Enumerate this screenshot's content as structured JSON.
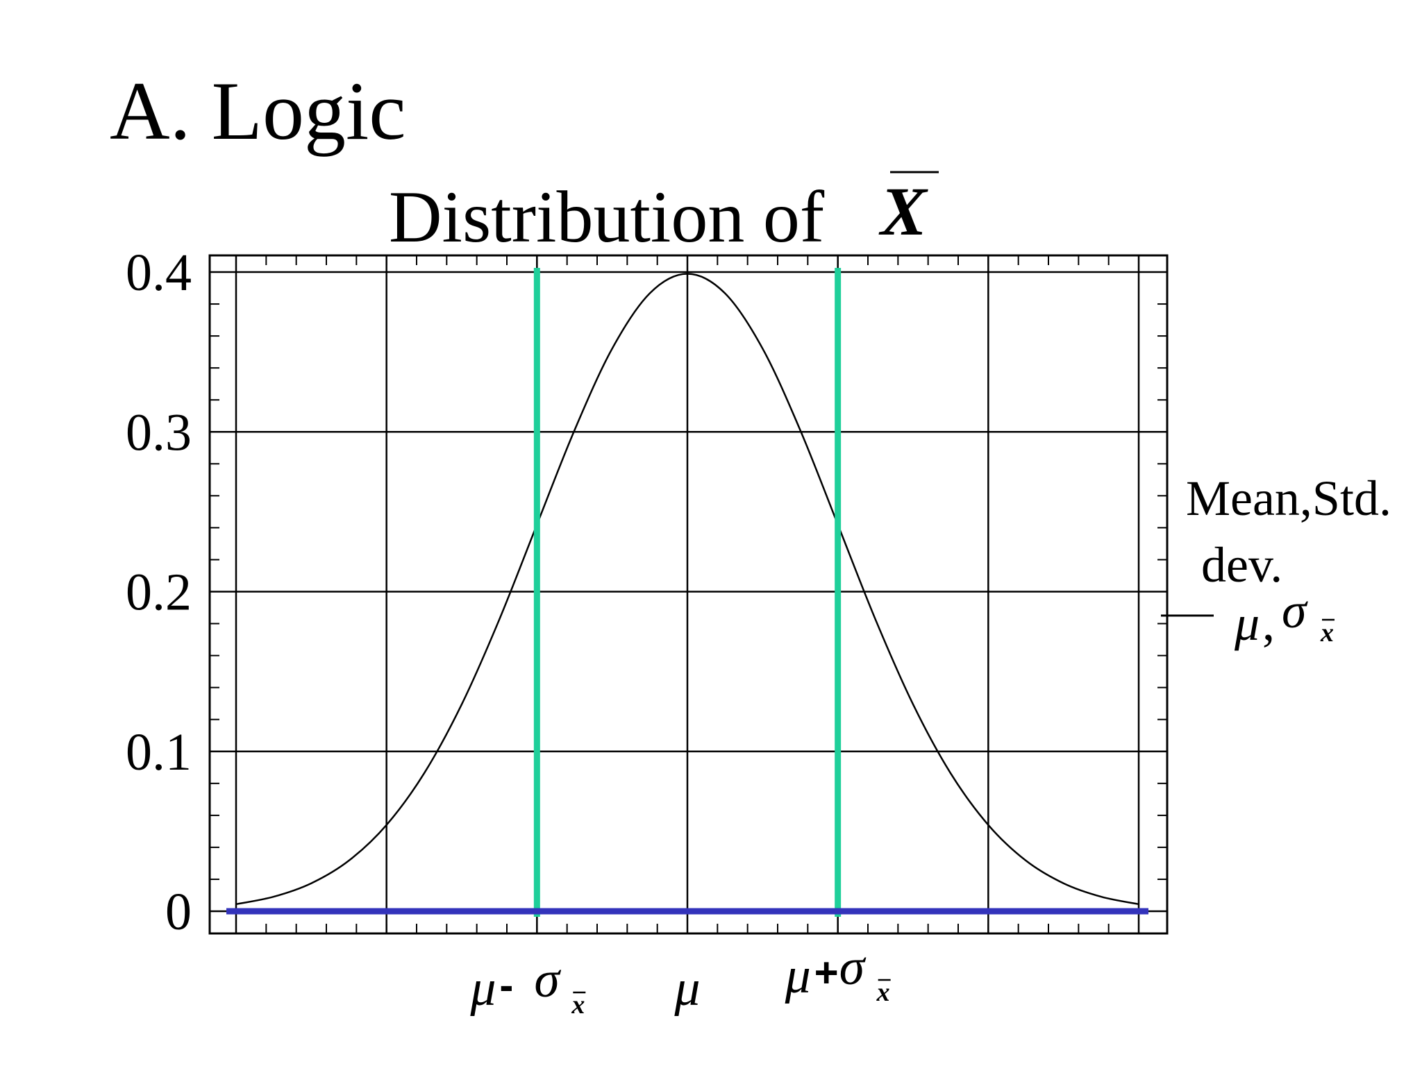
{
  "page": {
    "heading": "A. Logic"
  },
  "chart_data": {
    "type": "line",
    "title_text": "Distribution of",
    "title_symbol": "X",
    "x_domain": [
      -3,
      3
    ],
    "ylim": [
      0,
      0.4
    ],
    "grid": true,
    "y_ticks": [
      0,
      0.1,
      0.2,
      0.3,
      0.4
    ],
    "y_tick_labels": [
      "0",
      "0.1",
      "0.2",
      "0.3",
      "0.4"
    ],
    "x_grid": [
      -3,
      -2,
      -1,
      0,
      1,
      2,
      3
    ],
    "x_tick_labels": [
      {
        "x": -1,
        "mu": "μ",
        "op": "-",
        "sigma": "σ",
        "sub": "x"
      },
      {
        "x": 0,
        "mu": "μ",
        "op": "",
        "sigma": "",
        "sub": ""
      },
      {
        "x": 1,
        "mu": "μ",
        "op": "+",
        "sigma": "σ",
        "sub": "x"
      }
    ],
    "series": [
      {
        "color": "#000000",
        "x": [
          -3.0,
          -2.75,
          -2.5,
          -2.25,
          -2.0,
          -1.75,
          -1.5,
          -1.25,
          -1.0,
          -0.75,
          -0.5,
          -0.25,
          0.0,
          0.25,
          0.5,
          0.75,
          1.0,
          1.25,
          1.5,
          1.75,
          2.0,
          2.25,
          2.5,
          2.75,
          3.0
        ],
        "y": [
          0.0044,
          0.0091,
          0.0175,
          0.0317,
          0.054,
          0.0863,
          0.1295,
          0.1826,
          0.242,
          0.3011,
          0.3521,
          0.3867,
          0.3989,
          0.3867,
          0.3521,
          0.3011,
          0.242,
          0.1826,
          0.1295,
          0.0863,
          0.054,
          0.0317,
          0.0175,
          0.0091,
          0.0044
        ]
      }
    ],
    "reference_lines": [
      {
        "orientation": "vertical",
        "x": -1,
        "color": "#1fcf9a"
      },
      {
        "orientation": "vertical",
        "x": 1,
        "color": "#1fcf9a"
      },
      {
        "orientation": "horizontal",
        "y": 0,
        "color": "#3333bb"
      }
    ],
    "annotation": {
      "line1": "Mean,Std.",
      "line2": "dev.",
      "mu": "μ",
      "comma": ",",
      "sigma": "σ",
      "sub": "x"
    }
  }
}
